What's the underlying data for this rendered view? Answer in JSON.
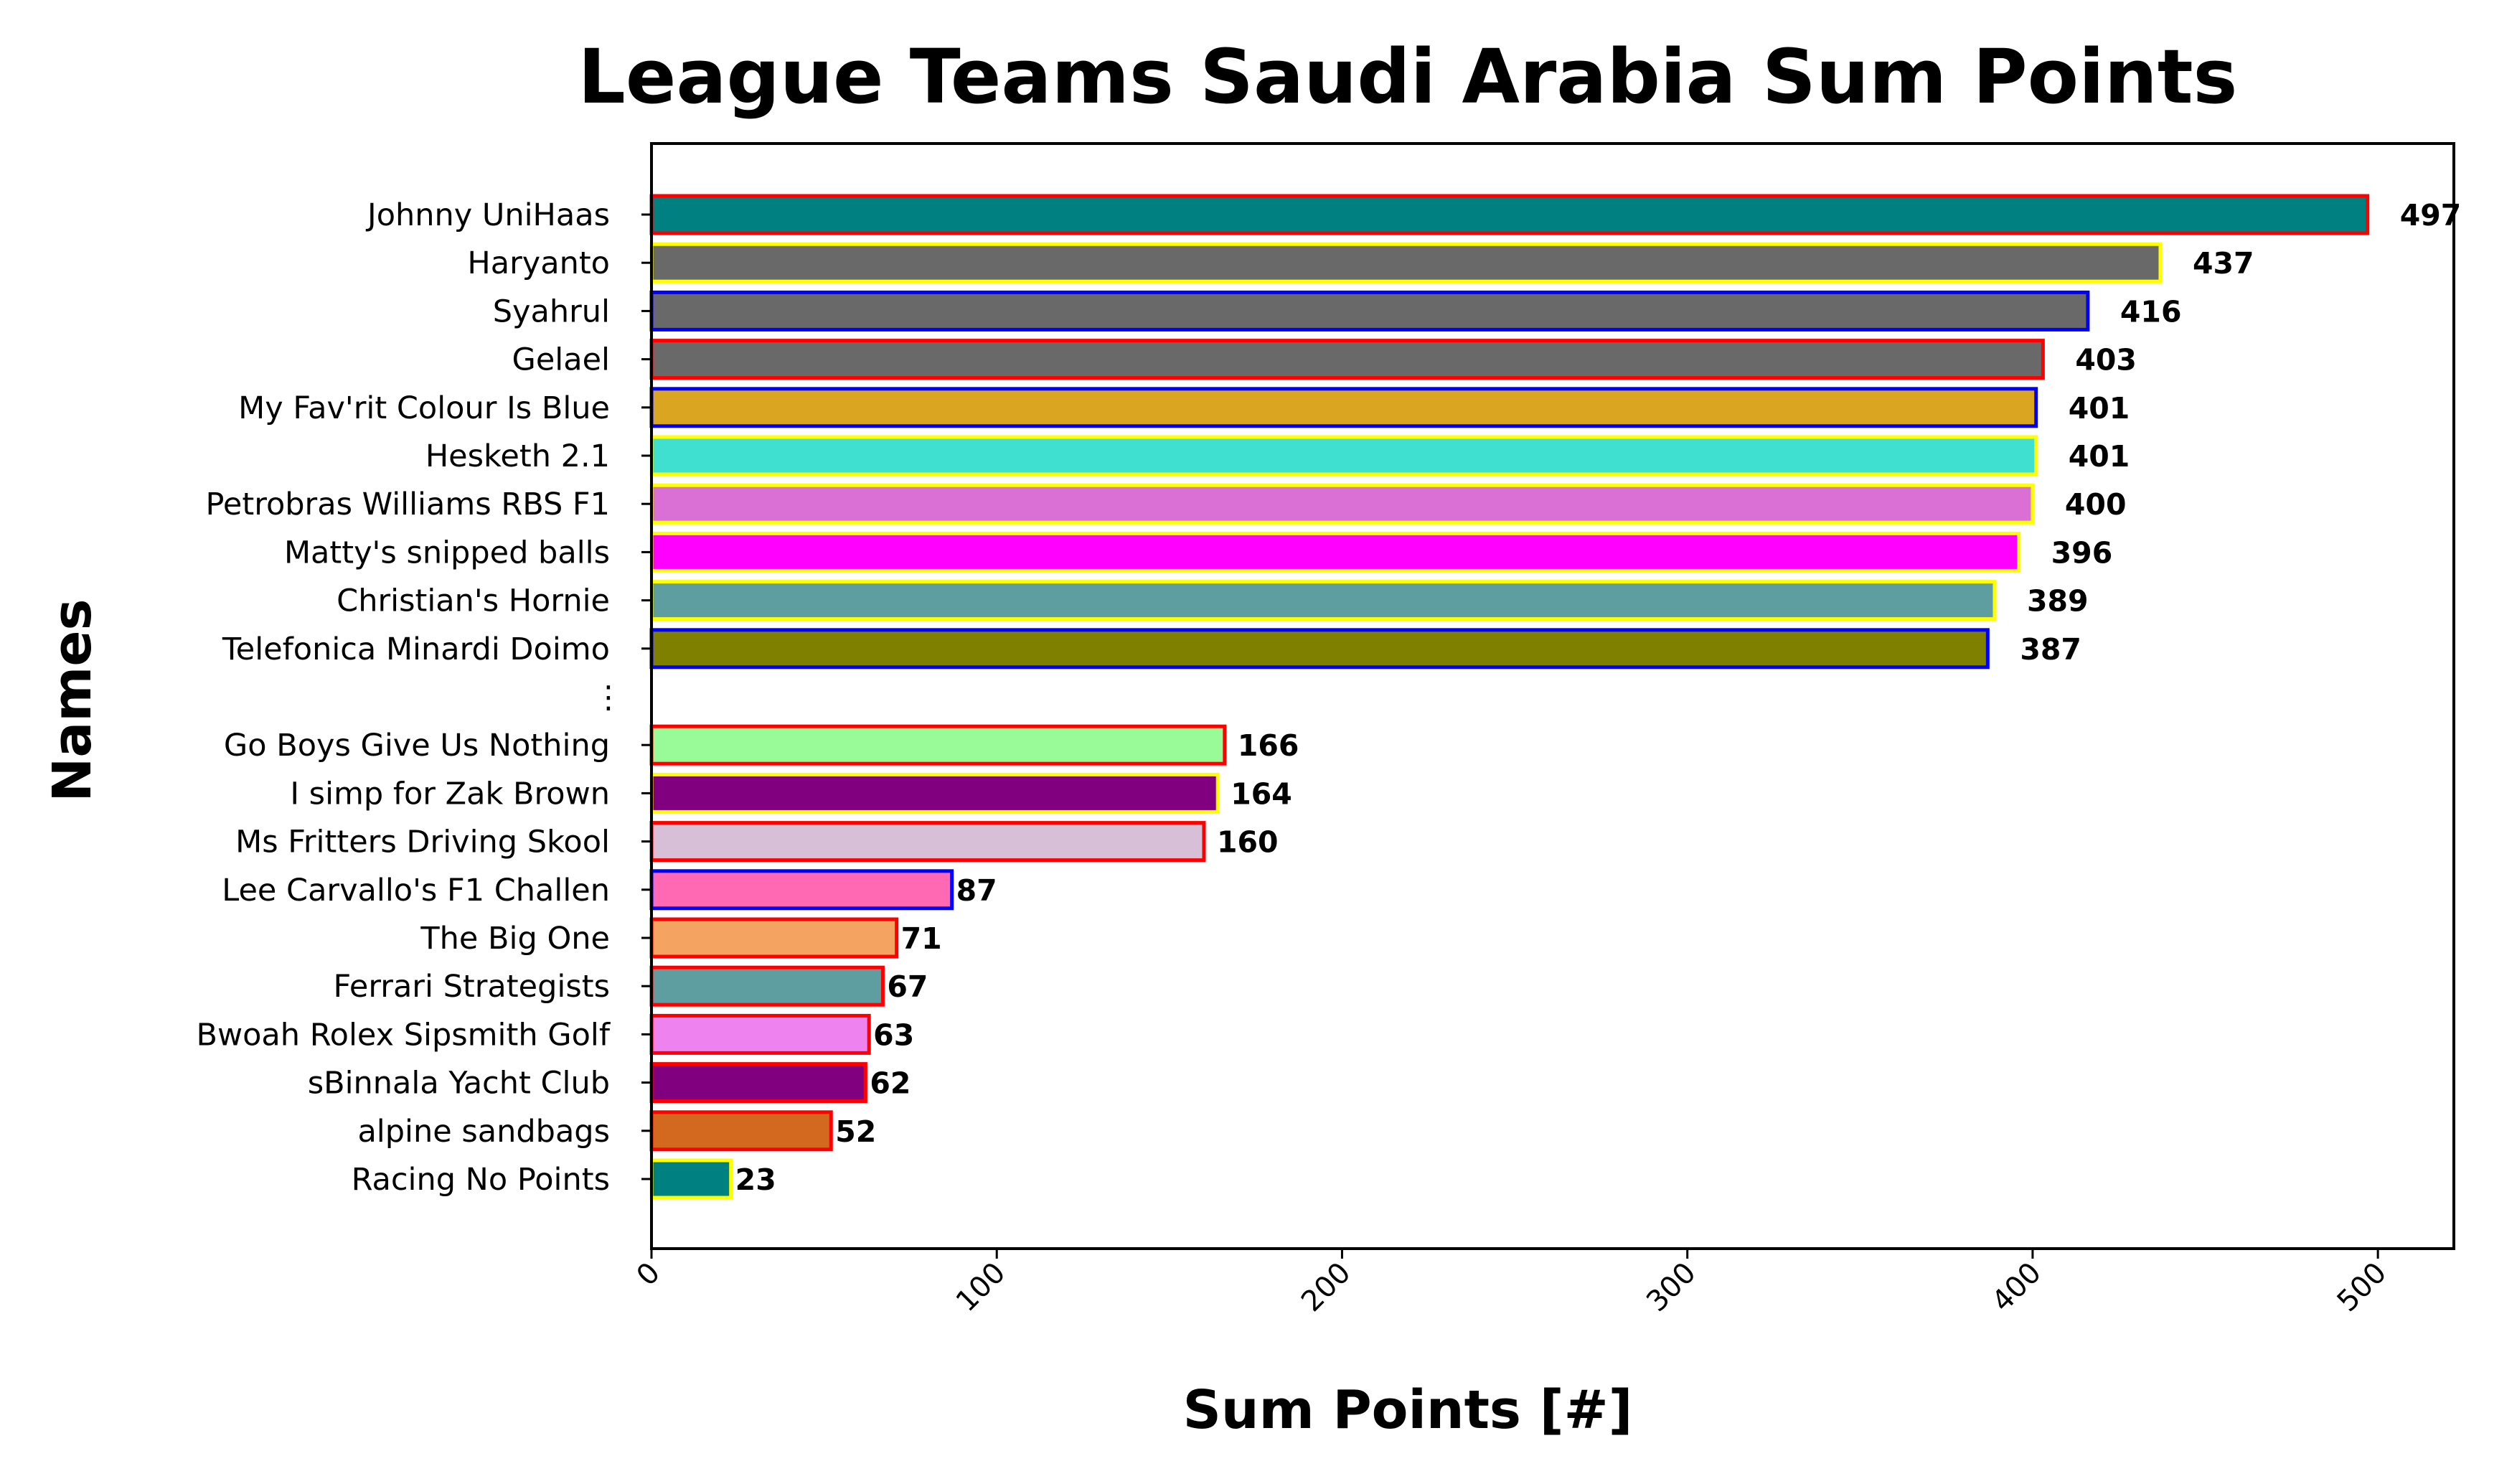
{
  "chart_data": {
    "type": "bar",
    "orientation": "horizontal",
    "title": "League Teams Saudi Arabia Sum Points",
    "xlabel": "Sum Points [#]",
    "ylabel": "Names",
    "xlim": [
      0,
      522
    ],
    "xticks": [
      0,
      100,
      200,
      300,
      400,
      500
    ],
    "xtick_rotation": 45,
    "grid": false,
    "legend": false,
    "gap_label": "⋮",
    "bars": [
      {
        "name": "Johnny UniHaas",
        "value": 497,
        "fill": "#008080",
        "edge": "#ff0000"
      },
      {
        "name": "Haryanto",
        "value": 437,
        "fill": "#696969",
        "edge": "#ffff00"
      },
      {
        "name": "Syahrul",
        "value": 416,
        "fill": "#696969",
        "edge": "#0000ff"
      },
      {
        "name": "Gelael",
        "value": 403,
        "fill": "#696969",
        "edge": "#ff0000"
      },
      {
        "name": "My Fav'rit Colour Is Blue",
        "value": 401,
        "fill": "#daa520",
        "edge": "#0000ff"
      },
      {
        "name": "Hesketh 2.1",
        "value": 401,
        "fill": "#40e0d0",
        "edge": "#ffff00"
      },
      {
        "name": "Petrobras Williams RBS F1",
        "value": 400,
        "fill": "#da70d6",
        "edge": "#ffff00"
      },
      {
        "name": "Matty's snipped balls",
        "value": 396,
        "fill": "#ff00ff",
        "edge": "#ffff00"
      },
      {
        "name": "Christian's Hornie",
        "value": 389,
        "fill": "#5f9ea0",
        "edge": "#ffff00"
      },
      {
        "name": "Telefonica Minardi Doimo",
        "value": 387,
        "fill": "#808000",
        "edge": "#0000ff"
      },
      {
        "gap": true
      },
      {
        "name": "Go Boys Give Us Nothing",
        "value": 166,
        "fill": "#98fb98",
        "edge": "#ff0000"
      },
      {
        "name": "I simp for Zak Brown",
        "value": 164,
        "fill": "#800080",
        "edge": "#ffff00"
      },
      {
        "name": "Ms Fritters Driving Skool",
        "value": 160,
        "fill": "#d8bfd8",
        "edge": "#ff0000"
      },
      {
        "name": "Lee Carvallo's F1 Challen",
        "value": 87,
        "fill": "#ff69b4",
        "edge": "#0000ff"
      },
      {
        "name": "The Big One",
        "value": 71,
        "fill": "#f4a460",
        "edge": "#ff0000"
      },
      {
        "name": "Ferrari Strategists",
        "value": 67,
        "fill": "#5f9ea0",
        "edge": "#ff0000"
      },
      {
        "name": "Bwoah Rolex Sipsmith Golf",
        "value": 63,
        "fill": "#ee82ee",
        "edge": "#ff0000"
      },
      {
        "name": "sBinnala Yacht Club",
        "value": 62,
        "fill": "#800080",
        "edge": "#ff0000"
      },
      {
        "name": "alpine sandbags",
        "value": 52,
        "fill": "#d2691e",
        "edge": "#ff0000"
      },
      {
        "name": "Racing No Points",
        "value": 23,
        "fill": "#008080",
        "edge": "#ffff00"
      }
    ]
  }
}
